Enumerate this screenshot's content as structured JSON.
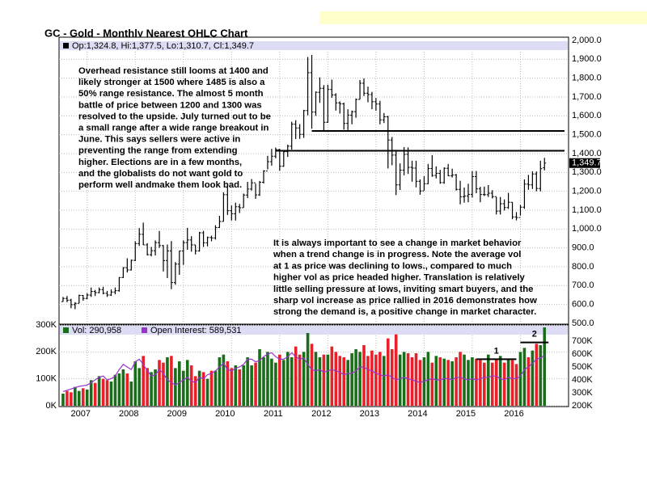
{
  "chart_data": [
    {
      "type": "ohlc",
      "title": "GC - Gold - Monthly Nearest OHLC Chart",
      "legend": "Op:1,324.8, Hi:1,377.5, Lo:1,310.7, Cl:1,349.7",
      "close_label": "1,349.7",
      "color": "#000000",
      "xlim": [
        -1,
        126
      ],
      "ylim": [
        500,
        2000
      ],
      "yticks": [
        {
          "value": 500,
          "label": "500.0"
        },
        {
          "value": 600,
          "label": "600.0"
        },
        {
          "value": 700,
          "label": "700.0"
        },
        {
          "value": 800,
          "label": "800.0"
        },
        {
          "value": 900,
          "label": "900.0"
        },
        {
          "value": 1000,
          "label": "1,000.0"
        },
        {
          "value": 1100,
          "label": "1,100.0"
        },
        {
          "value": 1200,
          "label": "1,200.0"
        },
        {
          "value": 1300,
          "label": "1,300.0"
        },
        {
          "value": 1400,
          "label": "1,400.0"
        },
        {
          "value": 1500,
          "label": "1,500.0"
        },
        {
          "value": 1600,
          "label": "1,600.0"
        },
        {
          "value": 1700,
          "label": "1,700.0"
        },
        {
          "value": 1800,
          "label": "1,800.0"
        },
        {
          "value": 1900,
          "label": "1,900.0"
        },
        {
          "value": 2000,
          "label": "2,000.0"
        }
      ],
      "grid": true,
      "open": [
        615,
        632,
        623,
        599,
        606,
        648,
        632,
        650,
        669,
        663,
        679,
        659,
        650,
        666,
        673,
        743,
        795,
        783,
        834,
        923,
        972,
        916,
        864,
        885,
        928,
        912,
        833,
        884,
        716,
        814,
        884,
        928,
        942,
        916,
        884,
        980,
        927,
        955,
        953,
        1008,
        1040,
        1182,
        1097,
        1081,
        1118,
        1113,
        1180,
        1212,
        1245,
        1181,
        1248,
        1308,
        1357,
        1386,
        1421,
        1333,
        1410,
        1439,
        1556,
        1536,
        1502,
        1628,
        1829,
        1620,
        1725,
        1746,
        1566,
        1740,
        1711,
        1669,
        1664,
        1560,
        1604,
        1622,
        1687,
        1773,
        1720,
        1713,
        1675,
        1663,
        1579,
        1595,
        1472,
        1392,
        1234,
        1312,
        1396,
        1327,
        1323,
        1253,
        1202,
        1240,
        1321,
        1284,
        1295,
        1246,
        1322,
        1282,
        1287,
        1210,
        1171,
        1175,
        1184,
        1278,
        1213,
        1183,
        1182,
        1190,
        1172,
        1095,
        1134,
        1114,
        1142,
        1064,
        1061,
        1116,
        1238,
        1234,
        1292,
        1215,
        1324.8
      ],
      "high": [
        640,
        645,
        630,
        612,
        652,
        650,
        660,
        690,
        677,
        690,
        694,
        672,
        680,
        690,
        745,
        798,
        845,
        838,
        935,
        1005,
        1034,
        925,
        905,
        940,
        990,
        915,
        918,
        936,
        825,
        885,
        940,
        1006,
        962,
        915,
        985,
        990,
        960,
        965,
        1020,
        1070,
        1195,
        1227,
        1125,
        1140,
        1133,
        1188,
        1250,
        1265,
        1240,
        1255,
        1312,
        1388,
        1425,
        1432,
        1425,
        1412,
        1447,
        1569,
        1577,
        1556,
        1632,
        1912,
        1923,
        1730,
        1804,
        1763,
        1765,
        1792,
        1720,
        1677,
        1670,
        1635,
        1628,
        1692,
        1790,
        1798,
        1755,
        1727,
        1695,
        1680,
        1615,
        1600,
        1488,
        1420,
        1348,
        1434,
        1433,
        1362,
        1362,
        1263,
        1280,
        1345,
        1392,
        1332,
        1314,
        1327,
        1345,
        1320,
        1292,
        1256,
        1220,
        1240,
        1307,
        1308,
        1224,
        1225,
        1233,
        1206,
        1170,
        1170,
        1157,
        1192,
        1142,
        1090,
        1128,
        1263,
        1287,
        1306,
        1305,
        1362,
        1377.5
      ],
      "low": [
        615,
        612,
        580,
        575,
        606,
        620,
        628,
        640,
        645,
        659,
        654,
        640,
        645,
        654,
        668,
        740,
        770,
        780,
        830,
        910,
        915,
        860,
        855,
        860,
        900,
        775,
        740,
        681,
        705,
        757,
        810,
        890,
        880,
        865,
        880,
        905,
        908,
        935,
        944,
        1006,
        1040,
        1075,
        1045,
        1045,
        1085,
        1113,
        1164,
        1204,
        1160,
        1176,
        1242,
        1316,
        1336,
        1375,
        1309,
        1330,
        1382,
        1421,
        1477,
        1478,
        1483,
        1603,
        1532,
        1600,
        1669,
        1522,
        1563,
        1696,
        1628,
        1612,
        1527,
        1525,
        1555,
        1590,
        1687,
        1705,
        1672,
        1635,
        1627,
        1555,
        1562,
        1321,
        1338,
        1180,
        1207,
        1285,
        1292,
        1251,
        1221,
        1182,
        1204,
        1238,
        1277,
        1268,
        1240,
        1240,
        1280,
        1273,
        1204,
        1131,
        1140,
        1142,
        1167,
        1190,
        1142,
        1175,
        1170,
        1162,
        1077,
        1077,
        1098,
        1107,
        1052,
        1046,
        1071,
        1107,
        1208,
        1212,
        1200,
        1200,
        1310.7
      ],
      "close": [
        632,
        623,
        599,
        606,
        648,
        632,
        650,
        669,
        663,
        679,
        659,
        650,
        666,
        673,
        743,
        795,
        783,
        834,
        923,
        972,
        916,
        864,
        885,
        928,
        912,
        833,
        884,
        716,
        814,
        884,
        928,
        942,
        916,
        884,
        980,
        927,
        955,
        953,
        1008,
        1040,
        1182,
        1097,
        1081,
        1118,
        1113,
        1180,
        1212,
        1245,
        1181,
        1248,
        1308,
        1357,
        1386,
        1421,
        1333,
        1410,
        1439,
        1556,
        1536,
        1502,
        1628,
        1829,
        1620,
        1725,
        1746,
        1566,
        1740,
        1711,
        1669,
        1664,
        1560,
        1604,
        1622,
        1687,
        1773,
        1720,
        1713,
        1675,
        1663,
        1579,
        1595,
        1472,
        1392,
        1234,
        1312,
        1396,
        1327,
        1323,
        1253,
        1202,
        1240,
        1321,
        1284,
        1295,
        1246,
        1322,
        1282,
        1287,
        1210,
        1171,
        1175,
        1184,
        1278,
        1213,
        1183,
        1182,
        1190,
        1172,
        1095,
        1134,
        1114,
        1142,
        1064,
        1061,
        1116,
        1238,
        1234,
        1292,
        1215,
        1320,
        1349.7
      ],
      "levels": [
        {
          "value": 1520,
          "from": 62,
          "to": 126
        },
        {
          "value": 1415,
          "from": 53,
          "to": 126
        }
      ],
      "annotations": [
        [
          "Overhead resistance still looms at 1400 and",
          "likely stronger at 1500 where 1485 is also a",
          "50% range resistance.  The almost 5 month",
          "battle of price between 1200 and 1300 was",
          "resolved to the upside.  July turned out to be",
          "a small range after a wide range breakout in",
          "June.  This says sellers were active in",
          "preventing the range from extending",
          "higher.  Elections are in a few months,",
          "and the globalists do not want gold to",
          "perform well andmake them look bad."
        ],
        [
          "It is always important to see a change in market behavior",
          "when a trend change is in progress.  Note the average vol",
          "at 1 as price was declining to lows., compared to much",
          "higher vol as price headed higher.  Translation is relatively",
          "little selling pressure at lows, inviting smart buyers, and the",
          "sharp vol increase as price rallied in 2016 demonstrates how",
          "strong the demand is, a positive change in market character."
        ]
      ]
    },
    {
      "type": "bar",
      "xticks": [
        {
          "value": 6,
          "label": "2007"
        },
        {
          "value": 18,
          "label": "2008"
        },
        {
          "value": 30,
          "label": "2009"
        },
        {
          "value": 42,
          "label": "2010"
        },
        {
          "value": 54,
          "label": "2011"
        },
        {
          "value": 66,
          "label": "2012"
        },
        {
          "value": 78,
          "label": "2013"
        },
        {
          "value": 90,
          "label": "2014"
        },
        {
          "value": 102,
          "label": "2015"
        },
        {
          "value": 114,
          "label": "2016"
        }
      ],
      "ylim": [
        0,
        300000
      ],
      "yticks": [
        {
          "value": 0,
          "label": "0K"
        },
        {
          "value": 100000,
          "label": "100K"
        },
        {
          "value": 200000,
          "label": "200K"
        },
        {
          "value": 300000,
          "label": "300K"
        }
      ],
      "y2lim": [
        200000,
        825000
      ],
      "y2ticks": [
        {
          "value": 200000,
          "label": "200K"
        },
        {
          "value": 300000,
          "label": "300K"
        },
        {
          "value": 400000,
          "label": "400K"
        },
        {
          "value": 500000,
          "label": "500K"
        },
        {
          "value": 600000,
          "label": "600K"
        },
        {
          "value": 700000,
          "label": "700K"
        }
      ],
      "series": [
        {
          "name": "Vol: 290,958",
          "color": "#1a6e1a",
          "down_color": "#e8202a",
          "values": [
            45000,
            55000,
            50000,
            70000,
            55000,
            65000,
            60000,
            95000,
            85000,
            110000,
            100000,
            95000,
            90000,
            115000,
            120000,
            135000,
            120000,
            90000,
            165000,
            140000,
            185000,
            140000,
            125000,
            135000,
            170000,
            160000,
            180000,
            185000,
            140000,
            165000,
            130000,
            170000,
            150000,
            110000,
            130000,
            125000,
            100000,
            130000,
            130000,
            180000,
            190000,
            165000,
            140000,
            150000,
            135000,
            150000,
            180000,
            150000,
            160000,
            210000,
            180000,
            200000,
            175000,
            160000,
            190000,
            170000,
            200000,
            180000,
            220000,
            190000,
            200000,
            270000,
            230000,
            200000,
            180000,
            190000,
            190000,
            220000,
            200000,
            185000,
            180000,
            170000,
            195000,
            210000,
            200000,
            225000,
            185000,
            205000,
            190000,
            200000,
            185000,
            250000,
            210000,
            265000,
            190000,
            200000,
            195000,
            180000,
            195000,
            170000,
            180000,
            200000,
            160000,
            185000,
            180000,
            175000,
            170000,
            165000,
            180000,
            200000,
            190000,
            170000,
            180000,
            175000,
            170000,
            160000,
            190000,
            160000,
            175000,
            185000,
            160000,
            175000,
            170000,
            155000,
            200000,
            215000,
            180000,
            205000,
            230000,
            225000,
            290958
          ]
        },
        {
          "name": "Open Interest: 589,531",
          "color": "#9933cc",
          "axis": "y2",
          "values": [
            310000,
            320000,
            330000,
            340000,
            350000,
            355000,
            360000,
            380000,
            400000,
            420000,
            430000,
            400000,
            410000,
            430000,
            480000,
            520000,
            500000,
            480000,
            540000,
            560000,
            520000,
            470000,
            430000,
            440000,
            480000,
            450000,
            400000,
            380000,
            360000,
            380000,
            400000,
            420000,
            390000,
            380000,
            420000,
            410000,
            440000,
            450000,
            470000,
            500000,
            530000,
            480000,
            470000,
            490000,
            500000,
            520000,
            560000,
            560000,
            540000,
            550000,
            580000,
            600000,
            610000,
            580000,
            560000,
            560000,
            580000,
            610000,
            580000,
            560000,
            570000,
            520000,
            480000,
            470000,
            480000,
            460000,
            470000,
            480000,
            470000,
            460000,
            440000,
            450000,
            450000,
            470000,
            500000,
            500000,
            480000,
            470000,
            450000,
            440000,
            430000,
            440000,
            420000,
            400000,
            410000,
            420000,
            410000,
            400000,
            390000,
            380000,
            390000,
            400000,
            410000,
            400000,
            400000,
            410000,
            410000,
            400000,
            420000,
            420000,
            410000,
            400000,
            410000,
            400000,
            410000,
            420000,
            420000,
            430000,
            430000,
            410000,
            400000,
            420000,
            410000,
            410000,
            430000,
            480000,
            500000,
            530000,
            560000,
            570000,
            589531
          ]
        }
      ],
      "marks": [
        {
          "label": "1",
          "value": 560000,
          "from": 103,
          "to": 113
        },
        {
          "label": "2",
          "value": 690000,
          "from": 114,
          "to": 121
        }
      ]
    }
  ]
}
